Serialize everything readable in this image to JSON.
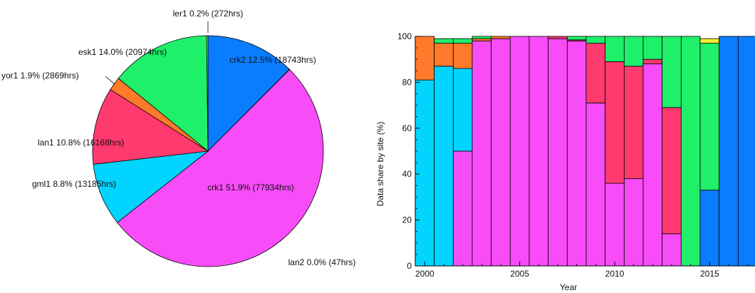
{
  "chart_data": [
    {
      "type": "pie",
      "slices": [
        {
          "label": "crk1 51.9% (77934hrs)",
          "site": "crk1",
          "percent": 51.9,
          "hours": 77934,
          "color": "#f74cf7"
        },
        {
          "label": "gml1 8.8% (13185hrs)",
          "site": "gml1",
          "percent": 8.8,
          "hours": 13185,
          "color": "#00d4ff"
        },
        {
          "label": "lan1 10.8% (16168hrs)",
          "site": "lan1",
          "percent": 10.8,
          "hours": 16168,
          "color": "#ff3a6e"
        },
        {
          "label": "yor1 1.9% (2869hrs)",
          "site": "yor1",
          "percent": 1.9,
          "hours": 2869,
          "color": "#ff7a2a"
        },
        {
          "label": "esk1 14.0% (20974hrs)",
          "site": "esk1",
          "percent": 14.0,
          "hours": 20974,
          "color": "#1ef06a"
        },
        {
          "label": "ler1 0.2% (272hrs)",
          "site": "ler1",
          "percent": 0.2,
          "hours": 272,
          "color": "#ffee33"
        },
        {
          "label": "crk2 12.5% (18743hrs)",
          "site": "crk2",
          "percent": 12.5,
          "hours": 18743,
          "color": "#0a7cff"
        },
        {
          "label": "lan2 0.0% (47hrs)",
          "site": "lan2",
          "percent": 0.0,
          "hours": 47,
          "color": "#9a4dff"
        }
      ]
    },
    {
      "type": "bar",
      "stacked": true,
      "ylabel": "Data share by site (%)",
      "xlabel": "Year",
      "ylim": [
        0,
        100
      ],
      "xlim": [
        1999.5,
        2017.5
      ],
      "xticks": [
        "2000",
        "2005",
        "2010",
        "2015"
      ],
      "yticks": [
        "0",
        "20",
        "40",
        "60",
        "80",
        "100"
      ],
      "categories": [
        2000,
        2001,
        2002,
        2003,
        2004,
        2005,
        2006,
        2007,
        2008,
        2009,
        2010,
        2011,
        2012,
        2013,
        2014,
        2015,
        2016,
        2017
      ],
      "series": [
        {
          "site": "crk2",
          "color": "#0a7cff",
          "values": [
            0,
            0,
            0,
            0,
            0,
            0,
            0,
            0,
            0,
            0,
            0,
            0,
            0,
            0,
            0,
            33,
            100,
            100
          ]
        },
        {
          "site": "crk1",
          "color": "#f74cf7",
          "values": [
            0,
            0,
            50,
            98,
            99,
            100,
            100,
            99,
            98,
            71,
            36,
            38,
            88,
            14,
            0,
            0,
            0,
            0
          ]
        },
        {
          "site": "gml1",
          "color": "#00d4ff",
          "values": [
            81,
            87,
            36,
            0,
            0,
            0,
            0,
            0,
            0,
            0,
            0,
            0,
            0,
            0,
            0,
            0,
            0,
            0
          ]
        },
        {
          "site": "lan1",
          "color": "#ff3a6e",
          "values": [
            0,
            0,
            0,
            0,
            0,
            0,
            0,
            1,
            0.5,
            26,
            53,
            49,
            2,
            55,
            0,
            0,
            0,
            0
          ]
        },
        {
          "site": "yor1",
          "color": "#ff7a2a",
          "values": [
            19,
            10,
            11,
            1,
            1,
            0,
            0,
            0,
            0,
            0,
            0,
            0,
            0,
            0,
            0,
            0,
            0,
            0
          ]
        },
        {
          "site": "esk1",
          "color": "#1ef06a",
          "values": [
            0,
            2,
            2,
            1,
            0,
            0,
            0,
            0,
            1.5,
            3,
            11,
            13,
            10,
            31,
            100,
            64,
            0,
            0
          ]
        },
        {
          "site": "ler1",
          "color": "#ffee33",
          "values": [
            0,
            0,
            0,
            0,
            0,
            0,
            0,
            0,
            0,
            0,
            0,
            0,
            0,
            0,
            0,
            2,
            0,
            0
          ]
        }
      ]
    }
  ]
}
